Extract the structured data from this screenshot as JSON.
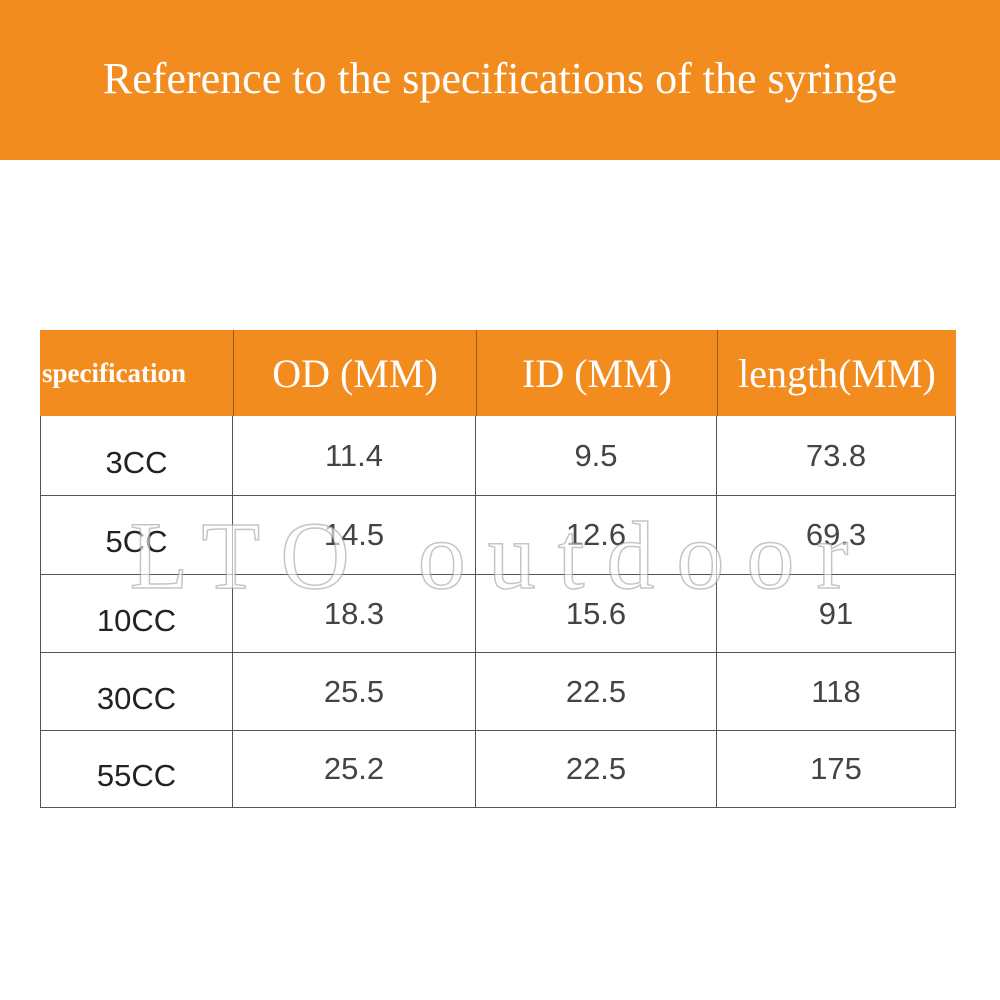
{
  "header": {
    "title": "Reference to the specifications of the syringe"
  },
  "table": {
    "columns": [
      "specification",
      "OD (MM)",
      "ID (MM)",
      "length(MM)"
    ],
    "rows": [
      [
        "3CC",
        "11.4",
        "9.5",
        "73.8"
      ],
      [
        "5CC",
        "14.5",
        "12.6",
        "69.3"
      ],
      [
        "10CC",
        "18.3",
        "15.6",
        "91"
      ],
      [
        "30CC",
        "25.5",
        "22.5",
        "118"
      ],
      [
        "55CC",
        "25.2",
        "22.5",
        "175"
      ]
    ]
  },
  "watermark": "LTO outdoor"
}
